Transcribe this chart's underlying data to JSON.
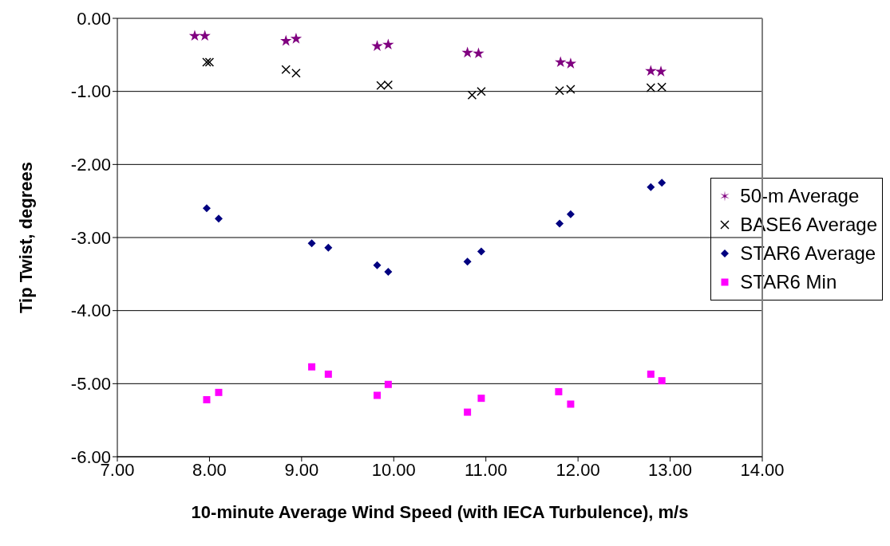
{
  "chart_data": {
    "type": "scatter",
    "xlabel": "10-minute Average Wind Speed (with IECA Turbulence), m/s",
    "ylabel": "Tip Twist, degrees",
    "xlim": [
      7,
      14
    ],
    "ylim": [
      -6,
      0
    ],
    "xticks": [
      {
        "value": 7,
        "label": "7.00"
      },
      {
        "value": 8,
        "label": "8.00"
      },
      {
        "value": 9,
        "label": "9.00"
      },
      {
        "value": 10,
        "label": "10.00"
      },
      {
        "value": 11,
        "label": "11.00"
      },
      {
        "value": 12,
        "label": "12.00"
      },
      {
        "value": 13,
        "label": "13.00"
      },
      {
        "value": 14,
        "label": "14.00"
      }
    ],
    "yticks": [
      {
        "value": -6,
        "label": "-6.00"
      },
      {
        "value": -5,
        "label": "-5.00"
      },
      {
        "value": -4,
        "label": "-4.00"
      },
      {
        "value": -3,
        "label": "-3.00"
      },
      {
        "value": -2,
        "label": "-2.00"
      },
      {
        "value": -1,
        "label": "-1.00"
      },
      {
        "value": 0,
        "label": "0.00"
      }
    ],
    "grid": "y",
    "legend": "right",
    "series": [
      {
        "name": "50-m Average",
        "color": "#800080",
        "marker": "star",
        "x": [
          7.84,
          7.95,
          8.83,
          8.94,
          9.82,
          9.94,
          10.8,
          10.92,
          11.81,
          11.92,
          12.79,
          12.9
        ],
        "values": [
          -0.24,
          -0.24,
          -0.31,
          -0.28,
          -0.38,
          -0.36,
          -0.47,
          -0.48,
          -0.6,
          -0.62,
          -0.72,
          -0.73
        ]
      },
      {
        "name": "BASE6 Average",
        "color": "#000000",
        "marker": "cross",
        "x": [
          7.97,
          8.0,
          8.83,
          8.94,
          9.86,
          9.94,
          10.85,
          10.95,
          11.8,
          11.92,
          12.79,
          12.91
        ],
        "values": [
          -0.6,
          -0.6,
          -0.7,
          -0.75,
          -0.92,
          -0.91,
          -1.05,
          -1.0,
          -0.99,
          -0.97,
          -0.95,
          -0.94
        ]
      },
      {
        "name": "STAR6 Average",
        "color": "#000080",
        "marker": "diamond",
        "x": [
          7.97,
          8.1,
          9.11,
          9.29,
          9.82,
          9.94,
          10.8,
          10.95,
          11.8,
          11.92,
          12.79,
          12.91
        ],
        "values": [
          -2.6,
          -2.74,
          -3.08,
          -3.14,
          -3.38,
          -3.47,
          -3.33,
          -3.19,
          -2.81,
          -2.68,
          -2.31,
          -2.25
        ]
      },
      {
        "name": "STAR6 Min",
        "color": "#ff00ff",
        "marker": "square",
        "x": [
          7.97,
          8.1,
          9.11,
          9.29,
          9.82,
          9.94,
          10.8,
          10.95,
          11.79,
          11.92,
          12.79,
          12.91
        ],
        "values": [
          -5.22,
          -5.12,
          -4.77,
          -4.87,
          -5.16,
          -5.01,
          -5.39,
          -5.2,
          -5.11,
          -5.28,
          -4.87,
          -4.96
        ]
      }
    ]
  }
}
